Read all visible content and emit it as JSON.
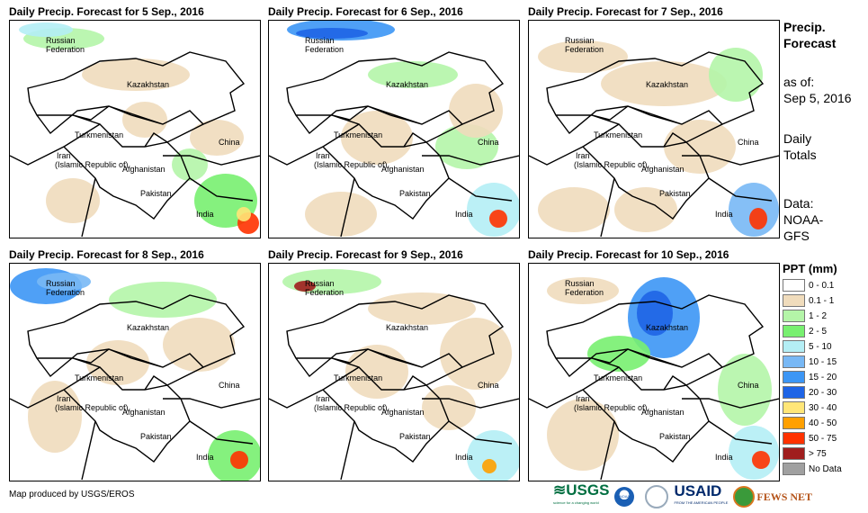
{
  "panels": [
    {
      "title": "Daily Precip. Forecast for 5 Sep., 2016"
    },
    {
      "title": "Daily Precip. Forecast for 6 Sep., 2016"
    },
    {
      "title": "Daily Precip. Forecast for 7 Sep., 2016"
    },
    {
      "title": "Daily Precip. Forecast for 8 Sep., 2016"
    },
    {
      "title": "Daily Precip. Forecast for 9 Sep., 2016"
    },
    {
      "title": "Daily Precip. Forecast for 10 Sep., 2016"
    }
  ],
  "countries": {
    "russia1": "Russian",
    "russia2": "Federation",
    "kazakhstan": "Kazakhstan",
    "turkmenistan": "Turkmenistan",
    "iran1": "Iran",
    "iran2": "(Islamic Republic of)",
    "afghanistan": "Afghanistan",
    "pakistan": "Pakistan",
    "china": "China",
    "india": "India"
  },
  "side": {
    "title1": "Precip.",
    "title2": "Forecast",
    "asof1": "as of:",
    "asof2": "Sep 5, 2016",
    "totals1": "Daily",
    "totals2": "Totals",
    "data1": "Data:",
    "data2": "NOAA-",
    "data3": "GFS"
  },
  "legend": {
    "title": "PPT (mm)",
    "items": [
      {
        "label": "0 - 0.1",
        "color": "#ffffff"
      },
      {
        "label": "0.1 - 1",
        "color": "#f0dcbc"
      },
      {
        "label": "1 - 2",
        "color": "#b4f5a8"
      },
      {
        "label": "2 - 5",
        "color": "#78f070"
      },
      {
        "label": "5 - 10",
        "color": "#b4eef5"
      },
      {
        "label": "10 - 15",
        "color": "#78b8f5"
      },
      {
        "label": "15 - 20",
        "color": "#3c96f5"
      },
      {
        "label": "20 - 30",
        "color": "#1e64e6"
      },
      {
        "label": "30 - 40",
        "color": "#ffe678"
      },
      {
        "label": "40 - 50",
        "color": "#ffa000"
      },
      {
        "label": "50 - 75",
        "color": "#ff3200"
      },
      {
        "label": "> 75",
        "color": "#a01e1e"
      },
      {
        "label": "No Data",
        "color": "#a0a0a0"
      }
    ]
  },
  "footer": "Map produced by USGS/EROS",
  "logos": {
    "usgs": "USGS",
    "usgs_tag": "science for a changing world",
    "noaa": "NOAA",
    "usaid": "USAID",
    "usaid_tag": "FROM THE AMERICAN PEOPLE",
    "fews": "FEWS NET"
  }
}
